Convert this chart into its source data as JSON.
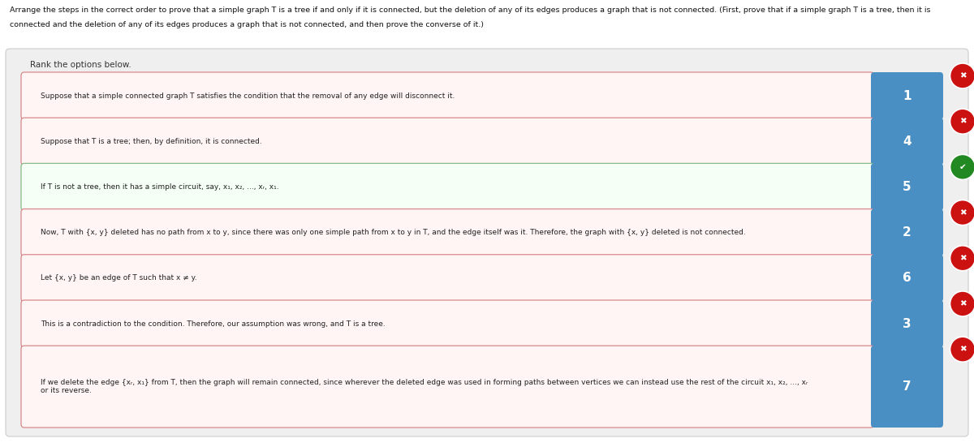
{
  "title_line1": "Arrange the steps in the correct order to prove that a simple graph T is a tree if and only if it is connected, but the deletion of any of its edges produces a graph that is not connected. (First, prove that if a simple graph T is a tree, then it is",
  "title_line2": "connected and the deletion of any of its edges produces a graph that is not connected, and then prove the converse of it.)",
  "subtitle": "Rank the options below.",
  "panel_bg": "#efefef",
  "panel_border": "#cccccc",
  "box_bg_wrong": "#fff5f5",
  "box_bg_correct": "#f5fff5",
  "box_border_wrong": "#d9888a",
  "box_border_correct": "#88bb88",
  "badge_color": "#4a8fc4",
  "wrong_color": "#cc1111",
  "correct_color": "#228822",
  "items": [
    {
      "text": "Suppose that a simple connected graph T satisfies the condition that the removal of any edge will disconnect it.",
      "number": "1",
      "correct": false,
      "tall": false
    },
    {
      "text": "Suppose that T is a tree; then, by definition, it is connected.",
      "number": "4",
      "correct": false,
      "tall": false
    },
    {
      "text": "If T is not a tree, then it has a simple circuit, say, x₁, x₂, ..., xᵣ, x₁.",
      "number": "5",
      "correct": true,
      "tall": false
    },
    {
      "text": "Now, T with {x, y} deleted has no path from x to y, since there was only one simple path from x to y in T, and the edge itself was it. Therefore, the graph with {x, y} deleted is not connected.",
      "number": "2",
      "correct": false,
      "tall": false
    },
    {
      "text": "Let {x, y} be an edge of T such that x ≠ y.",
      "number": "6",
      "correct": false,
      "tall": false
    },
    {
      "text": "This is a contradiction to the condition. Therefore, our assumption was wrong, and T is a tree.",
      "number": "3",
      "correct": false,
      "tall": false
    },
    {
      "text": "If we delete the edge {xᵣ, x₁} from T, then the graph will remain connected, since wherever the deleted edge was used in forming paths between vertices we can instead use the rest of the circuit x₁, x₂, ..., xᵣ\nor its reverse.",
      "number": "7",
      "correct": false,
      "tall": true
    }
  ]
}
